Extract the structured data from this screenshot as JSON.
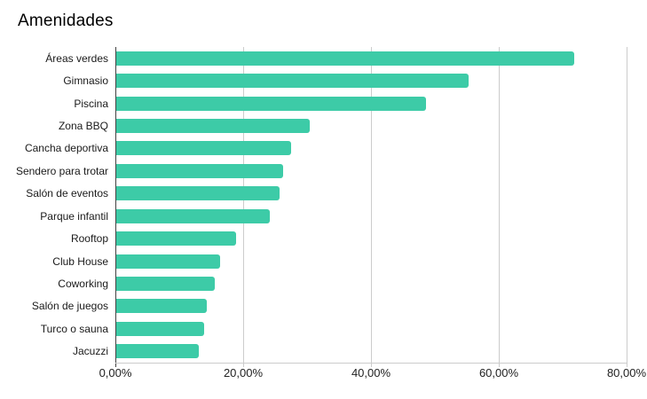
{
  "title": "Amenidades",
  "colors": {
    "bar": "#3dcba7",
    "gridline": "#cccccc",
    "axis": "#424242",
    "category_label": "#1a1a1a",
    "tick_label": "#222222",
    "background": "#ffffff"
  },
  "chart_data": {
    "type": "bar",
    "orientation": "horizontal",
    "title": "Amenidades",
    "categories": [
      "Áreas verdes",
      "Gimnasio",
      "Piscina",
      "Zona BBQ",
      "Cancha deportiva",
      "Sendero para trotar",
      "Salón de eventos",
      "Parque infantil",
      "Rooftop",
      "Club House",
      "Coworking",
      "Salón de juegos",
      "Turco o sauna",
      "Jacuzzi"
    ],
    "values": [
      71.8,
      55.2,
      48.5,
      30.3,
      27.4,
      26.1,
      25.6,
      24.0,
      18.8,
      16.3,
      15.5,
      14.2,
      13.8,
      13.0
    ],
    "unit": "%",
    "xlabel": "",
    "ylabel": "",
    "xlim": [
      0,
      80
    ],
    "x_tick_step": 20,
    "x_ticks": [
      "0,00%",
      "20,00%",
      "40,00%",
      "60,00%",
      "80,00%"
    ],
    "grid": true,
    "legend": "none"
  }
}
